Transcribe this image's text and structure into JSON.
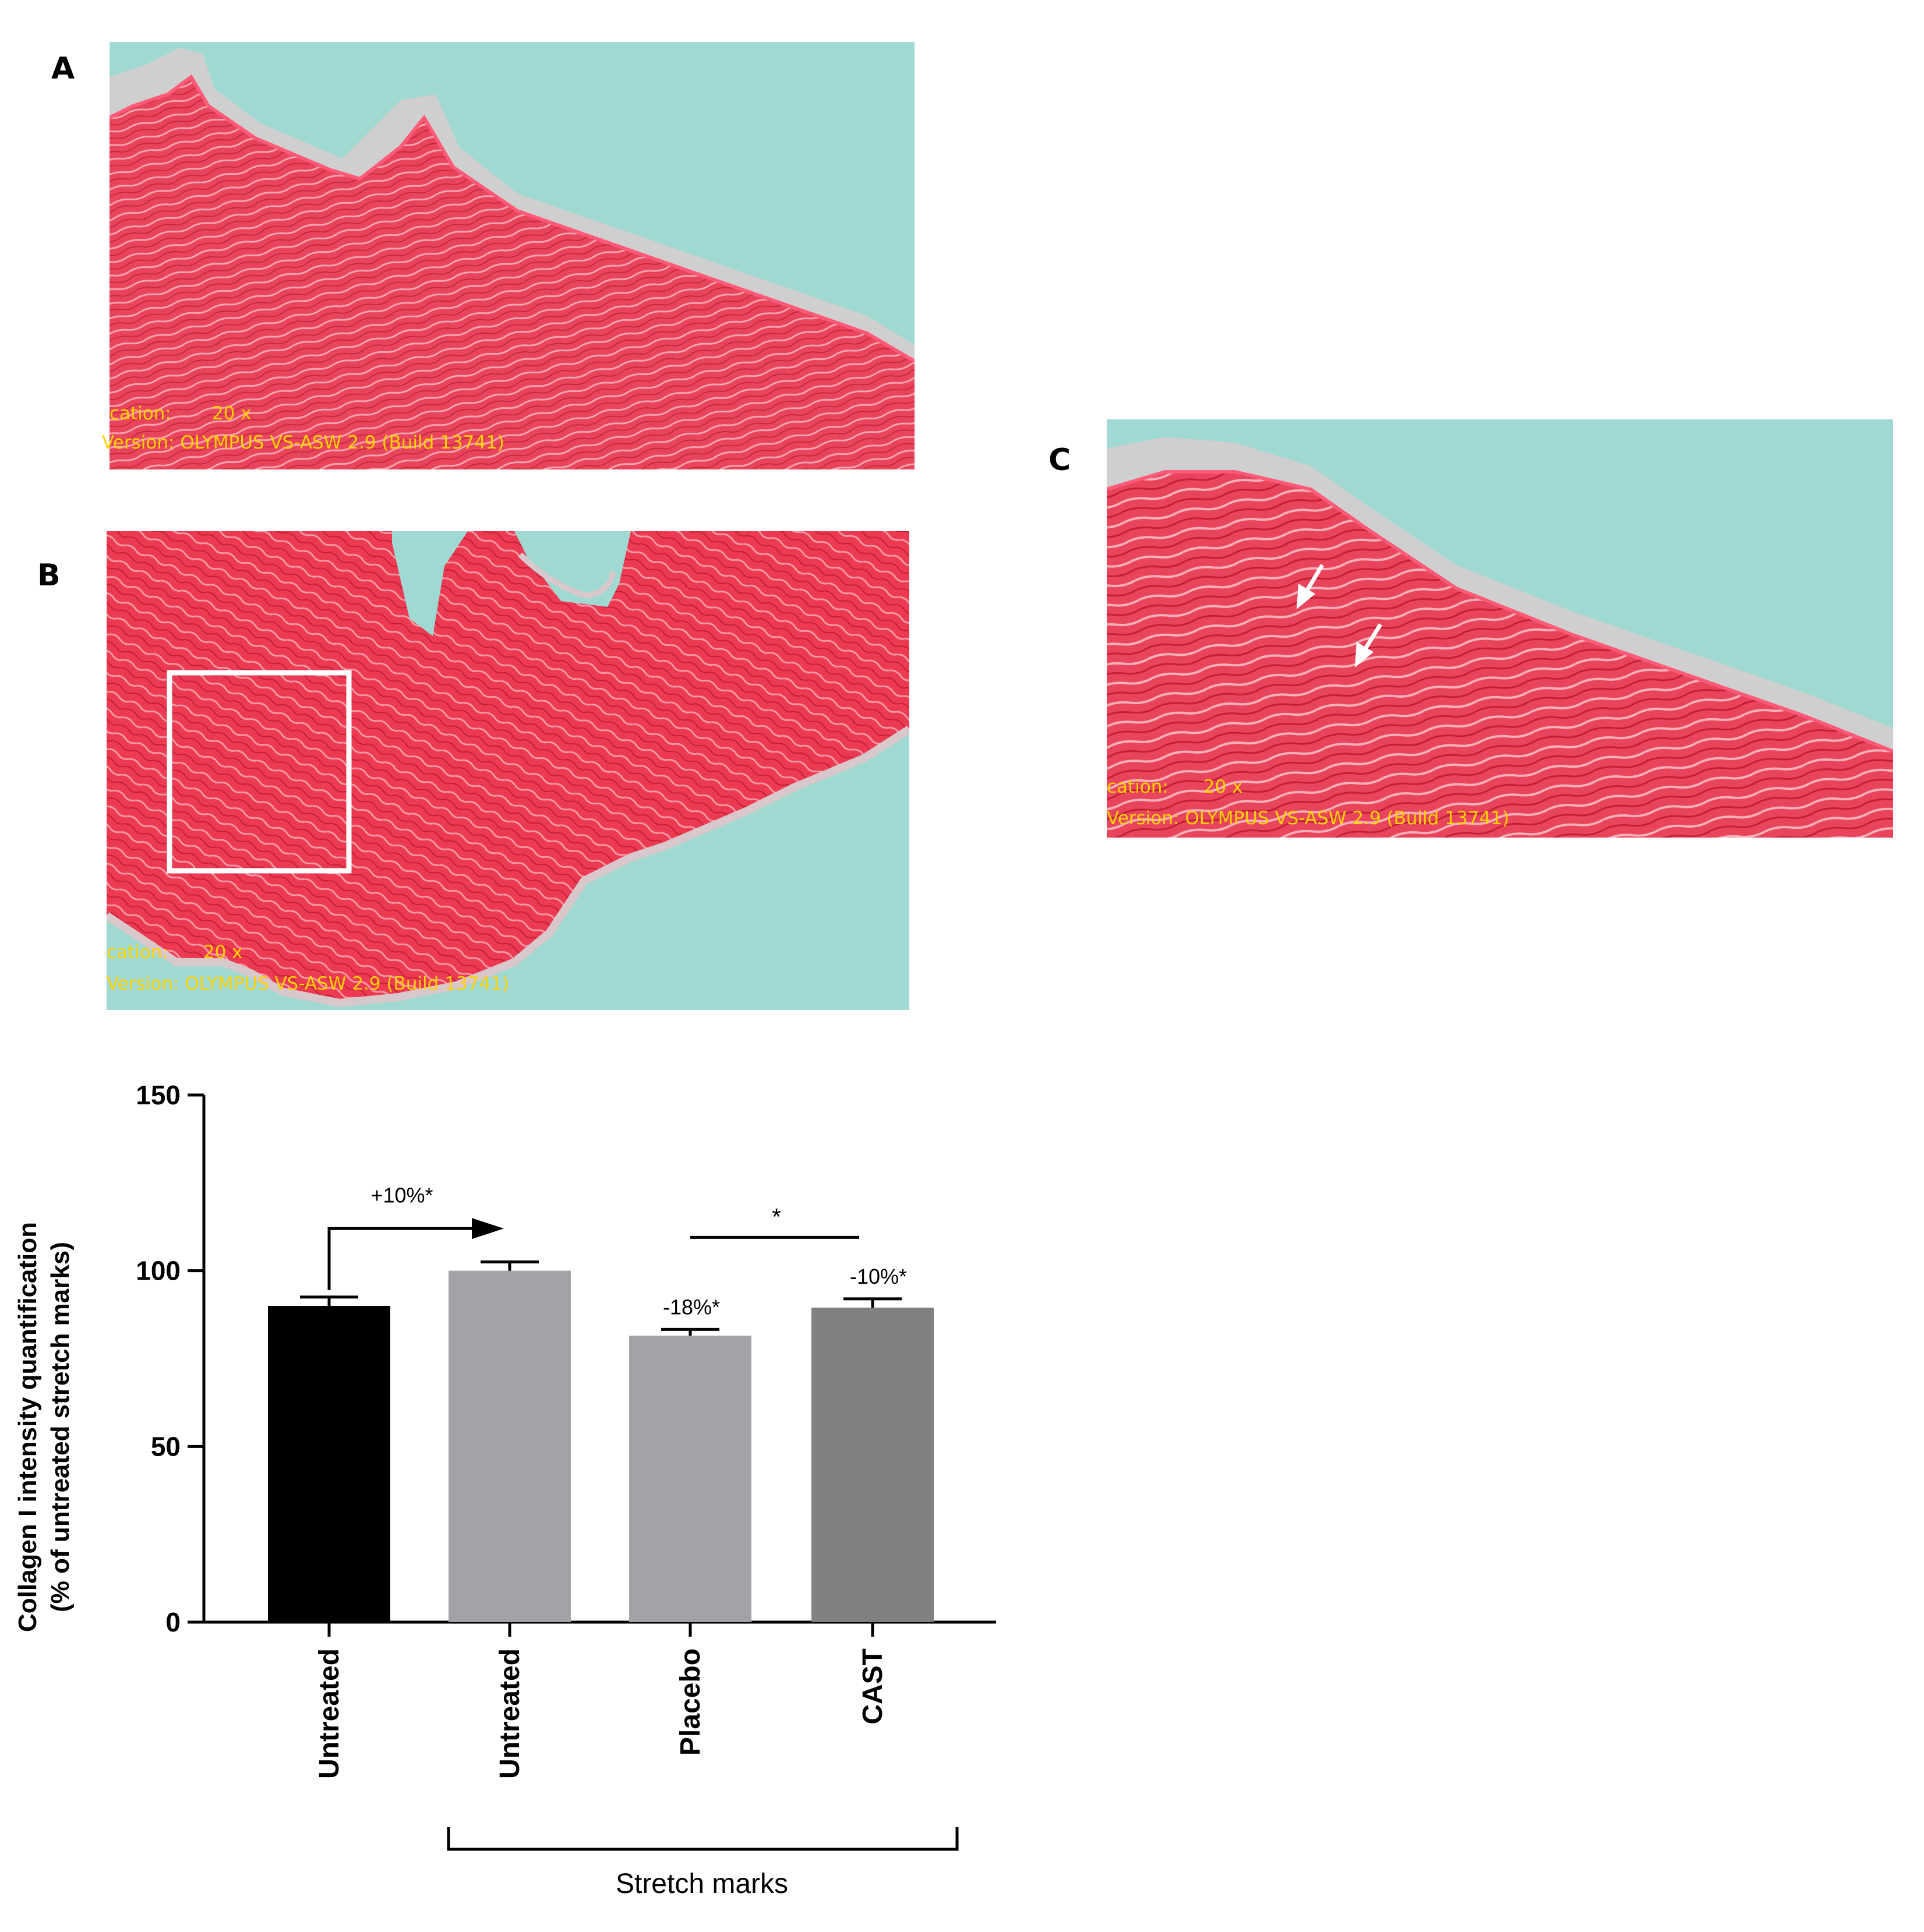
{
  "panels": {
    "A": {
      "letter": "A",
      "mag_label": "cation:",
      "mag_value": "20 x",
      "version_label": "Version:",
      "version_value": "OLYMPUS VS-ASW 2.9 (Build 13741)"
    },
    "B": {
      "letter": "B",
      "mag_label": "cation:",
      "mag_value": "20 x",
      "version_label": "Version:",
      "version_value": "OLYMPUS VS-ASW 2.9 (Build 13741)"
    },
    "C": {
      "letter": "C",
      "mag_label": "cation:",
      "mag_value": "20 x",
      "version_label": "Version:",
      "version_value": "OLYMPUS VS-ASW 2.9 (Build 13741)"
    }
  },
  "colors": {
    "background_stain": "#9fd9d2",
    "collagen": "#e8384f",
    "epidermis": "#c9c9c9"
  },
  "chart_data": {
    "type": "bar",
    "ylabel_line1": "Collagen I intensity quantification",
    "ylabel_line2": "(% of untreated stretch marks)",
    "ylim": [
      0,
      150
    ],
    "yticks": [
      0,
      50,
      100,
      150
    ],
    "categories": [
      "Untreated",
      "Untreated",
      "Placebo",
      "CAST"
    ],
    "values": [
      90,
      100,
      81.5,
      89.5
    ],
    "errors": [
      2.5,
      2.5,
      1.8,
      2.5
    ],
    "bar_colors": [
      "#000000",
      "#a3a3a7",
      "#a3a3a7",
      "#808080"
    ],
    "group_label": "Stretch marks",
    "annotations": {
      "arrow_label": "+10%*",
      "bracket_label": "*",
      "placebo_label": "-18%*",
      "cast_label": "-10%*"
    }
  }
}
